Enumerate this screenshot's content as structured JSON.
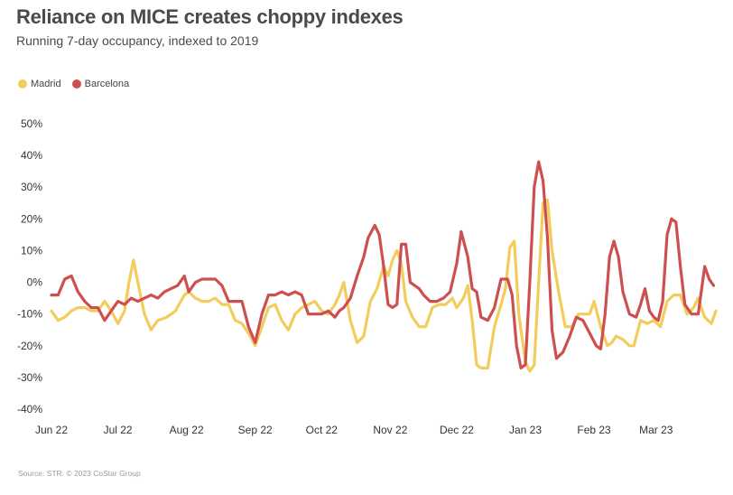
{
  "title": "Reliance on MICE creates choppy indexes",
  "subtitle": "Running 7-day occupancy, indexed to 2019",
  "source": "Source: STR. © 2023 CoStar Group",
  "legend": [
    {
      "label": "Madrid",
      "color": "#f2cd5c"
    },
    {
      "label": "Barcelona",
      "color": "#cd4f4f"
    }
  ],
  "chart_data": {
    "type": "line",
    "title": "Reliance on MICE creates choppy indexes",
    "subtitle": "Running 7-day occupancy, indexed to 2019",
    "xlabel": "",
    "ylabel": "",
    "y_tick_labels": [
      "50%",
      "40%",
      "30%",
      "20%",
      "10%",
      "0%",
      "-10%",
      "-20%",
      "-30%",
      "-40%"
    ],
    "y_ticks": [
      50,
      40,
      30,
      20,
      10,
      0,
      -10,
      -20,
      -30,
      -40
    ],
    "x_tick_labels": [
      "Jun 22",
      "Jul 22",
      "Aug 22",
      "Sep 22",
      "Oct 22",
      "Nov 22",
      "Dec 22",
      "Jan 23",
      "Feb 23",
      "Mar 23"
    ],
    "x_tick_days": [
      0,
      30,
      61,
      92,
      122,
      153,
      183,
      214,
      245,
      273
    ],
    "xlim": [
      0,
      300
    ],
    "ylim": [
      -40,
      50
    ],
    "grid": false,
    "legend_position": "top-left",
    "series": [
      {
        "name": "Madrid",
        "color": "#f2cd5c",
        "points": [
          [
            0,
            -9
          ],
          [
            3,
            -12
          ],
          [
            6,
            -11
          ],
          [
            9,
            -9
          ],
          [
            12,
            -8
          ],
          [
            15,
            -8
          ],
          [
            18,
            -9
          ],
          [
            21,
            -9
          ],
          [
            24,
            -6
          ],
          [
            27,
            -9
          ],
          [
            30,
            -13
          ],
          [
            33,
            -9
          ],
          [
            35,
            0
          ],
          [
            37,
            7
          ],
          [
            39,
            0
          ],
          [
            42,
            -10
          ],
          [
            45,
            -15
          ],
          [
            48,
            -12
          ],
          [
            52,
            -11
          ],
          [
            56,
            -9
          ],
          [
            60,
            -4
          ],
          [
            62,
            -3
          ],
          [
            65,
            -5
          ],
          [
            68,
            -6
          ],
          [
            71,
            -6
          ],
          [
            74,
            -5
          ],
          [
            77,
            -7
          ],
          [
            80,
            -7
          ],
          [
            83,
            -12
          ],
          [
            86,
            -13
          ],
          [
            89,
            -16
          ],
          [
            92,
            -20
          ],
          [
            95,
            -14
          ],
          [
            98,
            -8
          ],
          [
            101,
            -7
          ],
          [
            104,
            -12
          ],
          [
            107,
            -15
          ],
          [
            110,
            -10
          ],
          [
            113,
            -8
          ],
          [
            116,
            -7
          ],
          [
            119,
            -6
          ],
          [
            122,
            -9
          ],
          [
            125,
            -10
          ],
          [
            128,
            -7
          ],
          [
            130,
            -4
          ],
          [
            132,
            0
          ],
          [
            135,
            -12
          ],
          [
            138,
            -19
          ],
          [
            141,
            -17
          ],
          [
            144,
            -6
          ],
          [
            147,
            -2
          ],
          [
            150,
            5
          ],
          [
            152,
            2
          ],
          [
            154,
            7
          ],
          [
            156,
            10
          ],
          [
            158,
            6
          ],
          [
            160,
            -6
          ],
          [
            163,
            -11
          ],
          [
            166,
            -14
          ],
          [
            169,
            -14
          ],
          [
            172,
            -8
          ],
          [
            175,
            -7
          ],
          [
            178,
            -7
          ],
          [
            181,
            -5
          ],
          [
            183,
            -8
          ],
          [
            186,
            -5
          ],
          [
            188,
            -1
          ],
          [
            190,
            -12
          ],
          [
            192,
            -26
          ],
          [
            194,
            -27
          ],
          [
            197,
            -27
          ],
          [
            200,
            -14
          ],
          [
            203,
            -7
          ],
          [
            205,
            -2
          ],
          [
            207,
            11
          ],
          [
            209,
            13
          ],
          [
            211,
            -10
          ],
          [
            214,
            -25
          ],
          [
            216,
            -28
          ],
          [
            218,
            -26
          ],
          [
            220,
            0
          ],
          [
            222,
            25
          ],
          [
            224,
            26
          ],
          [
            226,
            10
          ],
          [
            229,
            -3
          ],
          [
            232,
            -14
          ],
          [
            235,
            -14
          ],
          [
            238,
            -10
          ],
          [
            241,
            -10
          ],
          [
            243,
            -10
          ],
          [
            245,
            -6
          ],
          [
            248,
            -14
          ],
          [
            251,
            -20
          ],
          [
            253,
            -19
          ],
          [
            255,
            -17
          ],
          [
            258,
            -18
          ],
          [
            261,
            -20
          ],
          [
            263,
            -20
          ],
          [
            266,
            -12
          ],
          [
            269,
            -13
          ],
          [
            272,
            -12
          ],
          [
            275,
            -14
          ],
          [
            278,
            -6
          ],
          [
            281,
            -4
          ],
          [
            284,
            -4
          ],
          [
            287,
            -10
          ],
          [
            290,
            -8
          ],
          [
            292,
            -5
          ],
          [
            295,
            -11
          ],
          [
            298,
            -13
          ],
          [
            300,
            -9
          ]
        ]
      },
      {
        "name": "Barcelona",
        "color": "#cd4f4f",
        "points": [
          [
            0,
            -4
          ],
          [
            3,
            -4
          ],
          [
            6,
            1
          ],
          [
            9,
            2
          ],
          [
            12,
            -3
          ],
          [
            15,
            -6
          ],
          [
            18,
            -8
          ],
          [
            21,
            -8
          ],
          [
            24,
            -12
          ],
          [
            27,
            -9
          ],
          [
            30,
            -6
          ],
          [
            33,
            -7
          ],
          [
            36,
            -5
          ],
          [
            39,
            -6
          ],
          [
            42,
            -5
          ],
          [
            45,
            -4
          ],
          [
            48,
            -5
          ],
          [
            51,
            -3
          ],
          [
            54,
            -2
          ],
          [
            57,
            -1
          ],
          [
            60,
            2
          ],
          [
            62,
            -3
          ],
          [
            65,
            0
          ],
          [
            68,
            1
          ],
          [
            71,
            1
          ],
          [
            74,
            1
          ],
          [
            77,
            -1
          ],
          [
            80,
            -6
          ],
          [
            83,
            -6
          ],
          [
            86,
            -6
          ],
          [
            89,
            -14
          ],
          [
            92,
            -19
          ],
          [
            95,
            -10
          ],
          [
            98,
            -4
          ],
          [
            101,
            -4
          ],
          [
            104,
            -3
          ],
          [
            107,
            -4
          ],
          [
            110,
            -3
          ],
          [
            113,
            -4
          ],
          [
            116,
            -10
          ],
          [
            119,
            -10
          ],
          [
            122,
            -10
          ],
          [
            125,
            -9
          ],
          [
            128,
            -11
          ],
          [
            130,
            -9
          ],
          [
            132,
            -8
          ],
          [
            135,
            -5
          ],
          [
            138,
            2
          ],
          [
            141,
            8
          ],
          [
            143,
            14
          ],
          [
            146,
            18
          ],
          [
            148,
            15
          ],
          [
            150,
            5
          ],
          [
            152,
            -7
          ],
          [
            154,
            -8
          ],
          [
            156,
            -7
          ],
          [
            158,
            12
          ],
          [
            160,
            12
          ],
          [
            162,
            0
          ],
          [
            164,
            -1
          ],
          [
            166,
            -2
          ],
          [
            168,
            -4
          ],
          [
            171,
            -6
          ],
          [
            174,
            -6
          ],
          [
            177,
            -5
          ],
          [
            180,
            -3
          ],
          [
            183,
            6
          ],
          [
            185,
            16
          ],
          [
            188,
            8
          ],
          [
            190,
            -2
          ],
          [
            192,
            -3
          ],
          [
            194,
            -11
          ],
          [
            197,
            -12
          ],
          [
            200,
            -8
          ],
          [
            203,
            1
          ],
          [
            206,
            1
          ],
          [
            208,
            -4
          ],
          [
            210,
            -20
          ],
          [
            212,
            -27
          ],
          [
            214,
            -26
          ],
          [
            216,
            0
          ],
          [
            218,
            30
          ],
          [
            220,
            38
          ],
          [
            222,
            32
          ],
          [
            224,
            14
          ],
          [
            226,
            -15
          ],
          [
            228,
            -24
          ],
          [
            231,
            -22
          ],
          [
            234,
            -17
          ],
          [
            237,
            -11
          ],
          [
            240,
            -12
          ],
          [
            243,
            -16
          ],
          [
            246,
            -20
          ],
          [
            248,
            -21
          ],
          [
            250,
            -10
          ],
          [
            252,
            8
          ],
          [
            254,
            13
          ],
          [
            256,
            8
          ],
          [
            258,
            -3
          ],
          [
            261,
            -10
          ],
          [
            264,
            -11
          ],
          [
            266,
            -7
          ],
          [
            268,
            -2
          ],
          [
            270,
            -9
          ],
          [
            272,
            -11
          ],
          [
            274,
            -12
          ],
          [
            276,
            -6
          ],
          [
            278,
            15
          ],
          [
            280,
            20
          ],
          [
            282,
            19
          ],
          [
            284,
            5
          ],
          [
            286,
            -7
          ],
          [
            289,
            -10
          ],
          [
            292,
            -10
          ],
          [
            295,
            5
          ],
          [
            297,
            1
          ],
          [
            299,
            -1
          ]
        ]
      }
    ]
  }
}
